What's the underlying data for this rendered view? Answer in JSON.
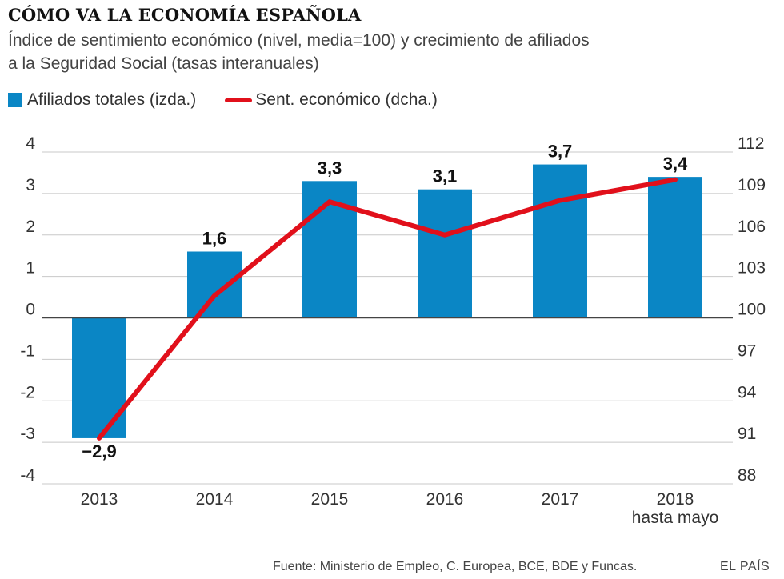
{
  "header": {
    "title": "CÓMO VA LA ECONOMÍA ESPAÑOLA",
    "subtitle_line1": "Índice de sentimiento económico (nivel, media=100) y crecimiento de afiliados",
    "subtitle_line2": "a la Seguridad Social (tasas interanuales)"
  },
  "legend": {
    "bar_label": "Afiliados totales (izda.)",
    "line_label": "Sent. económico (dcha.)"
  },
  "footer": {
    "source": "Fuente: Ministerio de Empleo, C. Europea, BCE, BDE y Funcas.",
    "brand": "EL PAÍS"
  },
  "colors": {
    "bar": "#0a86c5",
    "line": "#e1101b",
    "grid": "#c8c8c8",
    "zero": "#444444"
  },
  "chart_data": {
    "type": "bar",
    "title": "CÓMO VA LA ECONOMÍA ESPAÑOLA",
    "categories": [
      "2013",
      "2014",
      "2015",
      "2016",
      "2017",
      "2018"
    ],
    "category_sublabels": [
      "",
      "",
      "",
      "",
      "",
      "hasta mayo"
    ],
    "series": [
      {
        "name": "Afiliados totales (izda.)",
        "type": "bar",
        "axis": "left",
        "values": [
          -2.9,
          1.6,
          3.3,
          3.1,
          3.7,
          3.4
        ],
        "labels": [
          "−2,9",
          "1,6",
          "3,3",
          "3,1",
          "3,7",
          "3,4"
        ]
      },
      {
        "name": "Sent. económico (dcha.)",
        "type": "line",
        "axis": "right",
        "values": [
          91.3,
          101.6,
          108.4,
          106.0,
          108.5,
          110.0
        ]
      }
    ],
    "y_left": {
      "min": -4,
      "max": 4,
      "ticks": [
        "4",
        "3",
        "2",
        "1",
        "0",
        "-1",
        "-2",
        "-3",
        "-4"
      ]
    },
    "y_right": {
      "min": 88,
      "max": 112,
      "ticks": [
        "112",
        "109",
        "106",
        "103",
        "100",
        "97",
        "94",
        "91",
        "88"
      ]
    },
    "grid": true,
    "legend_position": "top-left"
  }
}
